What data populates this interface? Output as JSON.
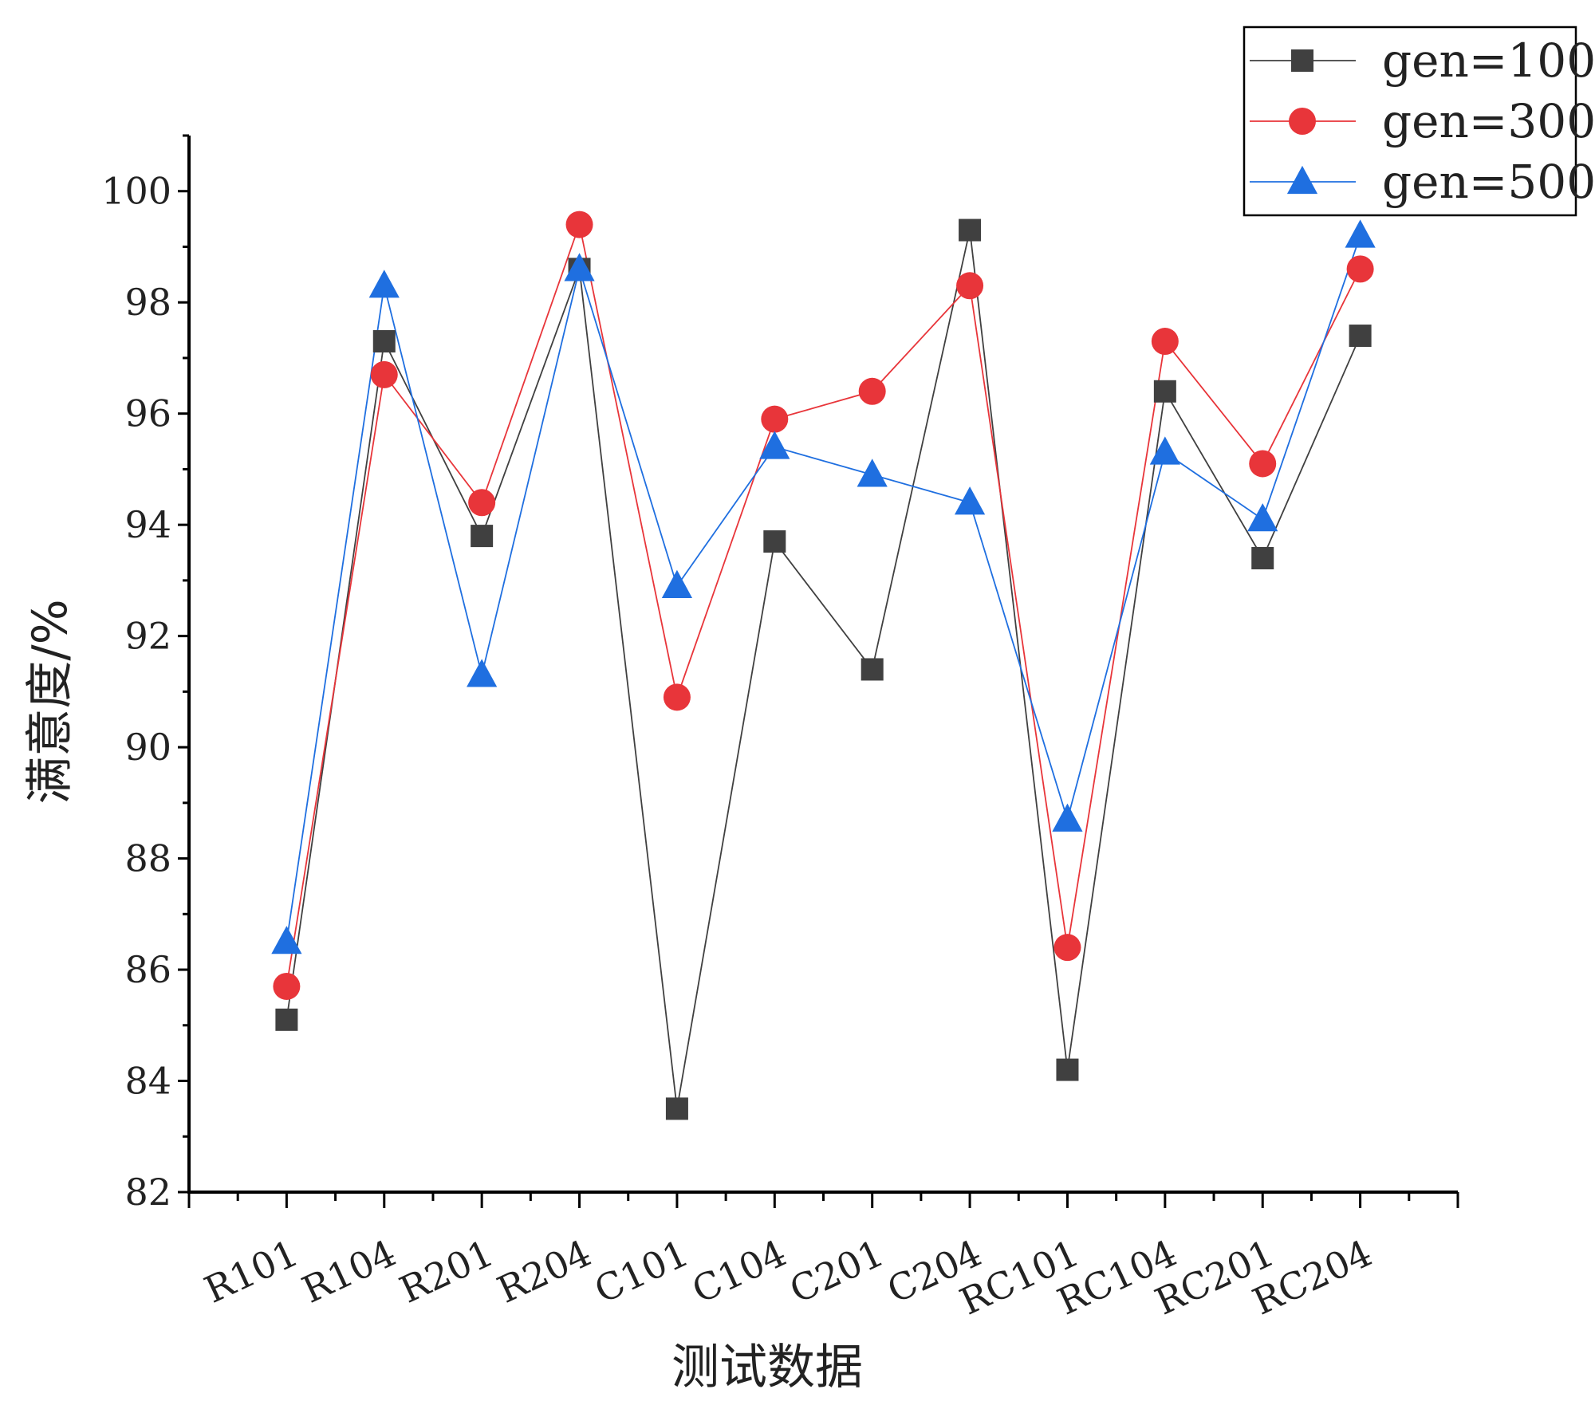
{
  "chart_data": {
    "type": "line",
    "title": "",
    "xlabel": "测试数据",
    "ylabel": "满意度/%",
    "categories": [
      "R101",
      "R104",
      "R201",
      "R204",
      "C101",
      "C104",
      "C201",
      "C204",
      "RC101",
      "RC104",
      "RC201",
      "RC204"
    ],
    "ylim": [
      82,
      101
    ],
    "yticks": [
      82,
      84,
      86,
      88,
      90,
      92,
      94,
      96,
      98,
      100
    ],
    "grid": false,
    "legend_position": "top-right",
    "series": [
      {
        "name": "gen=100",
        "marker": "square",
        "color": "#404040",
        "values": [
          85.1,
          97.3,
          93.8,
          98.6,
          83.5,
          93.7,
          91.4,
          99.3,
          84.2,
          96.4,
          93.4,
          97.4
        ]
      },
      {
        "name": "gen=300",
        "marker": "circle",
        "color": "#e8353a",
        "values": [
          85.7,
          96.7,
          94.4,
          99.4,
          90.9,
          95.9,
          96.4,
          98.3,
          86.4,
          97.3,
          95.1,
          98.6
        ]
      },
      {
        "name": "gen=500",
        "marker": "triangle",
        "color": "#1f6fe0",
        "values": [
          86.5,
          98.3,
          91.3,
          98.6,
          92.9,
          95.4,
          94.9,
          94.4,
          88.7,
          95.3,
          94.1,
          99.2
        ]
      }
    ]
  }
}
